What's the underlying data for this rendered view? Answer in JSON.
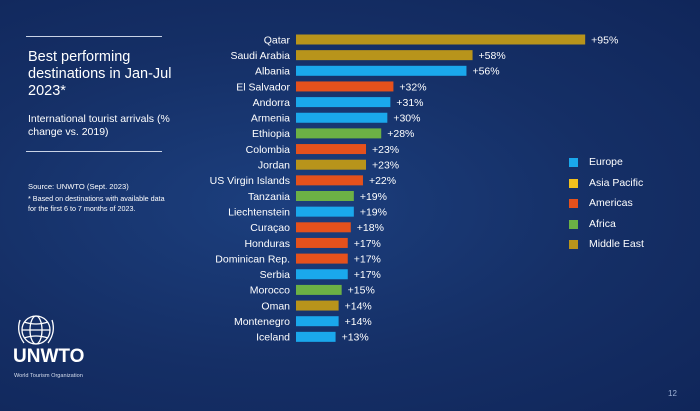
{
  "panel": {
    "title": "Best performing destinations in Jan-Jul 2023*",
    "subtitle": "International tourist arrivals (% change vs. 2019)",
    "source": "Source: UNWTO (Sept. 2023)",
    "note": "* Based on destinations with available data for the first 6 to 7 months of 2023."
  },
  "logo": {
    "name": "UNWTO",
    "subtitle": "World Tourism Organization"
  },
  "page_number": "12",
  "colors": {
    "Europe": "#1aa8ec",
    "Asia Pacific": "#f2c01e",
    "Americas": "#e5511c",
    "Africa": "#6cb145",
    "Middle East": "#b8941b"
  },
  "chart_data": {
    "type": "bar",
    "orientation": "horizontal",
    "categories": [
      "Qatar",
      "Saudi Arabia",
      "Albania",
      "El Salvador",
      "Andorra",
      "Armenia",
      "Ethiopia",
      "Colombia",
      "Jordan",
      "US Virgin Islands",
      "Tanzania",
      "Liechtenstein",
      "Curaçao",
      "Honduras",
      "Dominican Rep.",
      "Serbia",
      "Morocco",
      "Oman",
      "Montenegro",
      "Iceland"
    ],
    "values": [
      95,
      58,
      56,
      32,
      31,
      30,
      28,
      23,
      23,
      22,
      19,
      19,
      18,
      17,
      17,
      17,
      15,
      14,
      14,
      13
    ],
    "labels": [
      "+95%",
      "+58%",
      "+56%",
      "+32%",
      "+31%",
      "+30%",
      "+28%",
      "+23%",
      "+23%",
      "+22%",
      "+19%",
      "+19%",
      "+18%",
      "+17%",
      "+17%",
      "+17%",
      "+15%",
      "+14%",
      "+14%",
      "+13%"
    ],
    "regions": [
      "Middle East",
      "Middle East",
      "Europe",
      "Americas",
      "Europe",
      "Europe",
      "Africa",
      "Americas",
      "Middle East",
      "Americas",
      "Africa",
      "Europe",
      "Americas",
      "Americas",
      "Americas",
      "Europe",
      "Africa",
      "Middle East",
      "Europe",
      "Europe"
    ],
    "legend": [
      "Europe",
      "Asia Pacific",
      "Americas",
      "Africa",
      "Middle East"
    ],
    "legend_position": "right",
    "grid": false
  }
}
